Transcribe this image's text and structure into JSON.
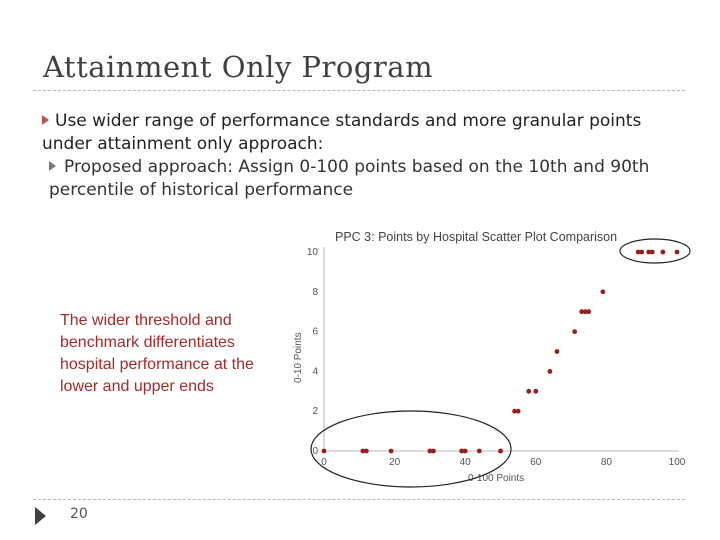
{
  "slide": {
    "title": "Attainment Only Program",
    "bullet_1": "Use wider range of performance standards and more granular points under attainment only approach:",
    "bullet_2": "Proposed approach:  Assign 0-100 points based on the 10th and 90th percentile of historical performance",
    "callout": "The wider threshold and benchmark differentiates hospital performance at the lower and upper ends",
    "page_number": "20"
  },
  "colors": {
    "point": "#9b1c1c",
    "callout_text": "#a52a2a",
    "bullet_marker": "#c0504d"
  },
  "chart_data": {
    "type": "scatter",
    "title": "PPC 3: Points by Hospital Scatter Plot Comparison",
    "xlabel": "0-100 Points",
    "ylabel": "0-10 Points",
    "xlim": [
      0,
      100
    ],
    "ylim": [
      0,
      10
    ],
    "xticks": [
      0,
      20,
      40,
      60,
      80,
      100
    ],
    "yticks": [
      0,
      2,
      4,
      6,
      8,
      10
    ],
    "grid": false,
    "points": [
      {
        "x": 0,
        "y": 0
      },
      {
        "x": 11,
        "y": 0
      },
      {
        "x": 12,
        "y": 0
      },
      {
        "x": 19,
        "y": 0
      },
      {
        "x": 30,
        "y": 0
      },
      {
        "x": 31,
        "y": 0
      },
      {
        "x": 39,
        "y": 0
      },
      {
        "x": 40,
        "y": 0
      },
      {
        "x": 44,
        "y": 0
      },
      {
        "x": 50,
        "y": 0
      },
      {
        "x": 54,
        "y": 2
      },
      {
        "x": 55,
        "y": 2
      },
      {
        "x": 58,
        "y": 3
      },
      {
        "x": 60,
        "y": 3
      },
      {
        "x": 64,
        "y": 4
      },
      {
        "x": 66,
        "y": 5
      },
      {
        "x": 71,
        "y": 6
      },
      {
        "x": 73,
        "y": 7
      },
      {
        "x": 74,
        "y": 7
      },
      {
        "x": 75,
        "y": 7
      },
      {
        "x": 79,
        "y": 8
      },
      {
        "x": 89,
        "y": 10
      },
      {
        "x": 90,
        "y": 10
      },
      {
        "x": 92,
        "y": 10
      },
      {
        "x": 93,
        "y": 10
      },
      {
        "x": 96,
        "y": 10
      },
      {
        "x": 100,
        "y": 10
      }
    ],
    "highlight_ellipses": [
      "lower-end",
      "upper-end"
    ]
  }
}
